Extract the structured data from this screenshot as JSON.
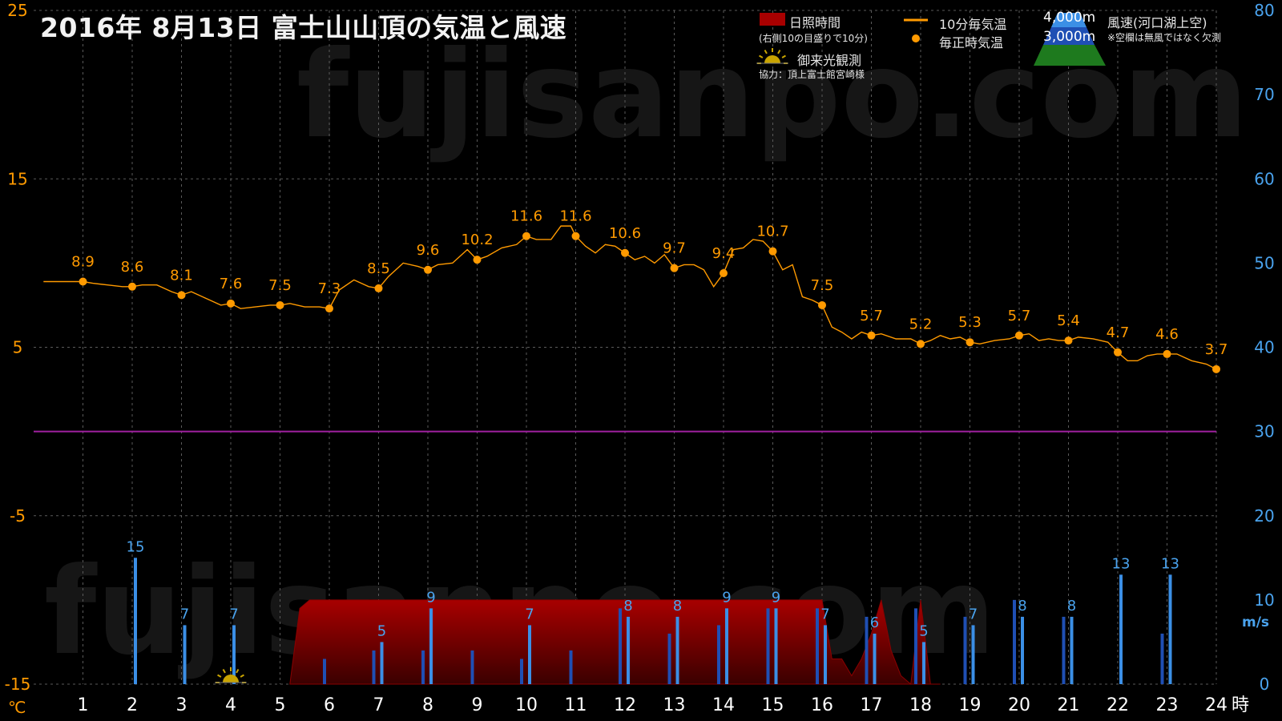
{
  "title": "2016年  8月13日   富士山山頂の気温と風速",
  "legend": {
    "sunshine_label": "日照時間",
    "sunshine_note": "(右側10の目盛りで10分)",
    "temp10_label": "10分毎気温",
    "hourly_label": "毎正時気温",
    "goraiko_label": "御来光観測",
    "credit": "協力：頂上富士館宮崎様",
    "alt_high": "4,000m",
    "alt_low": "3,000m",
    "wind_label": "風速(河口湖上空)",
    "wind_note": "※空欄は無風ではなく欠測"
  },
  "watermark": "fujisanpo.com",
  "colors": {
    "temperature": "#ff9a00",
    "wind_3000m": "#1f4fb4",
    "wind_4000m": "#3b8fe6",
    "sunshine": "#a80000",
    "freezing_line": "#a020a0",
    "grid": "#5a5a5a",
    "left_axis_text": "#ff9a00",
    "right_axis_text": "#4aa3ee"
  },
  "chart_data": {
    "type": "line",
    "x_unit": "時",
    "y_unit_left": "℃",
    "y_unit_right": "m/s",
    "x_ticks": [
      "1",
      "2",
      "3",
      "4",
      "5",
      "6",
      "7",
      "8",
      "9",
      "10",
      "11",
      "12",
      "13",
      "14",
      "15",
      "16",
      "17",
      "18",
      "19",
      "20",
      "21",
      "22",
      "23",
      "24"
    ],
    "y_left_ticks": [
      "25",
      "15",
      "5",
      "-5",
      "-15"
    ],
    "y_right_ticks": [
      "80",
      "70",
      "60",
      "50",
      "40",
      "30",
      "20",
      "10",
      "0"
    ],
    "xlim": [
      0,
      24
    ],
    "ylim_left": [
      -15,
      25
    ],
    "ylim_right": [
      0,
      80
    ],
    "grid": true,
    "freezing_line": 0,
    "hourly_temperature": {
      "hours": [
        1,
        2,
        3,
        4,
        5,
        6,
        7,
        8,
        9,
        10,
        11,
        12,
        13,
        14,
        15,
        16,
        17,
        18,
        19,
        20,
        21,
        22,
        23,
        24
      ],
      "values": [
        8.9,
        8.6,
        8.1,
        7.6,
        7.5,
        7.3,
        8.5,
        9.6,
        10.2,
        11.6,
        11.6,
        10.6,
        9.7,
        9.4,
        10.7,
        7.5,
        5.7,
        5.2,
        5.3,
        5.7,
        5.4,
        4.7,
        4.6,
        3.7
      ]
    },
    "temperature_10min": {
      "x": [
        0.2,
        0.5,
        0.8,
        1.0,
        1.2,
        1.5,
        1.8,
        2.0,
        2.2,
        2.5,
        2.8,
        3.0,
        3.2,
        3.5,
        3.8,
        4.0,
        4.2,
        4.5,
        4.8,
        5.0,
        5.2,
        5.5,
        5.8,
        6.0,
        6.2,
        6.5,
        6.8,
        7.0,
        7.2,
        7.5,
        7.8,
        8.0,
        8.2,
        8.5,
        8.8,
        9.0,
        9.2,
        9.5,
        9.8,
        10.0,
        10.2,
        10.5,
        10.7,
        10.9,
        11.0,
        11.2,
        11.4,
        11.6,
        11.8,
        12.0,
        12.2,
        12.4,
        12.6,
        12.8,
        13.0,
        13.2,
        13.4,
        13.6,
        13.8,
        14.0,
        14.2,
        14.4,
        14.6,
        14.8,
        15.0,
        15.2,
        15.4,
        15.6,
        15.8,
        16.0,
        16.2,
        16.4,
        16.6,
        16.8,
        17.0,
        17.2,
        17.5,
        17.8,
        18.0,
        18.2,
        18.4,
        18.6,
        18.8,
        19.0,
        19.2,
        19.5,
        19.8,
        20.0,
        20.2,
        20.4,
        20.6,
        20.8,
        21.0,
        21.2,
        21.5,
        21.8,
        22.0,
        22.2,
        22.4,
        22.6,
        22.8,
        23.0,
        23.2,
        23.5,
        23.8,
        24.0
      ],
      "values": [
        8.9,
        8.9,
        8.9,
        8.9,
        8.8,
        8.7,
        8.6,
        8.6,
        8.7,
        8.7,
        8.3,
        8.1,
        8.3,
        7.9,
        7.5,
        7.6,
        7.3,
        7.4,
        7.5,
        7.5,
        7.6,
        7.4,
        7.4,
        7.3,
        8.4,
        9.0,
        8.6,
        8.5,
        9.2,
        10.0,
        9.8,
        9.6,
        9.9,
        10.0,
        10.8,
        10.2,
        10.4,
        10.9,
        11.1,
        11.6,
        11.4,
        11.4,
        12.2,
        12.2,
        11.6,
        11.0,
        10.6,
        11.1,
        11.0,
        10.6,
        10.2,
        10.4,
        10.0,
        10.5,
        9.7,
        9.9,
        9.9,
        9.6,
        8.6,
        9.4,
        10.8,
        10.9,
        11.4,
        11.3,
        10.7,
        9.6,
        9.9,
        8.0,
        7.8,
        7.5,
        6.2,
        5.9,
        5.5,
        5.9,
        5.7,
        5.8,
        5.5,
        5.5,
        5.2,
        5.4,
        5.7,
        5.5,
        5.6,
        5.3,
        5.2,
        5.4,
        5.5,
        5.7,
        5.8,
        5.4,
        5.5,
        5.4,
        5.4,
        5.6,
        5.5,
        5.3,
        4.7,
        4.2,
        4.2,
        4.5,
        4.6,
        4.6,
        4.6,
        4.2,
        4.0,
        3.7
      ]
    },
    "sunshine_10min": {
      "x": [
        5.2,
        5.4,
        5.6,
        6,
        7,
        8,
        9,
        10,
        11,
        12,
        13,
        14,
        15,
        15.8,
        16.0,
        16.2,
        16.4,
        16.6,
        16.8,
        17.0,
        17.2,
        17.4,
        17.6,
        17.8,
        18.0,
        18.2,
        18.4
      ],
      "values": [
        0,
        9,
        10,
        10,
        10,
        10,
        10,
        10,
        10,
        10,
        10,
        10,
        10,
        10,
        10,
        3,
        3,
        1,
        3,
        6,
        10,
        4,
        1,
        0,
        10,
        0,
        0
      ]
    },
    "wind": {
      "series": [
        {
          "name": "4,000m",
          "x": [
            2,
            3,
            4,
            7,
            8,
            10,
            12,
            13,
            14,
            15,
            16,
            17,
            18,
            19,
            20,
            21,
            22,
            23
          ],
          "values": [
            15,
            7,
            7,
            5,
            9,
            7,
            8,
            8,
            9,
            9,
            7,
            6,
            5,
            7,
            8,
            8,
            13,
            13
          ],
          "labels": [
            "15",
            "7",
            "7",
            "5",
            "9",
            "7",
            "8",
            "8",
            "9",
            "9",
            "7",
            "6",
            "5",
            "7",
            "8",
            "8",
            "13",
            "13"
          ]
        },
        {
          "name": "3,000m",
          "x": [
            6,
            7,
            8,
            9,
            10,
            11,
            12,
            13,
            14,
            15,
            16,
            17,
            18,
            19,
            20,
            21,
            23
          ],
          "values": [
            3,
            4,
            4,
            4,
            3,
            4,
            9,
            6,
            7,
            9,
            9,
            8,
            9,
            8,
            10,
            8,
            6
          ]
        }
      ]
    },
    "goraiko_observed_hour": 4.0
  }
}
